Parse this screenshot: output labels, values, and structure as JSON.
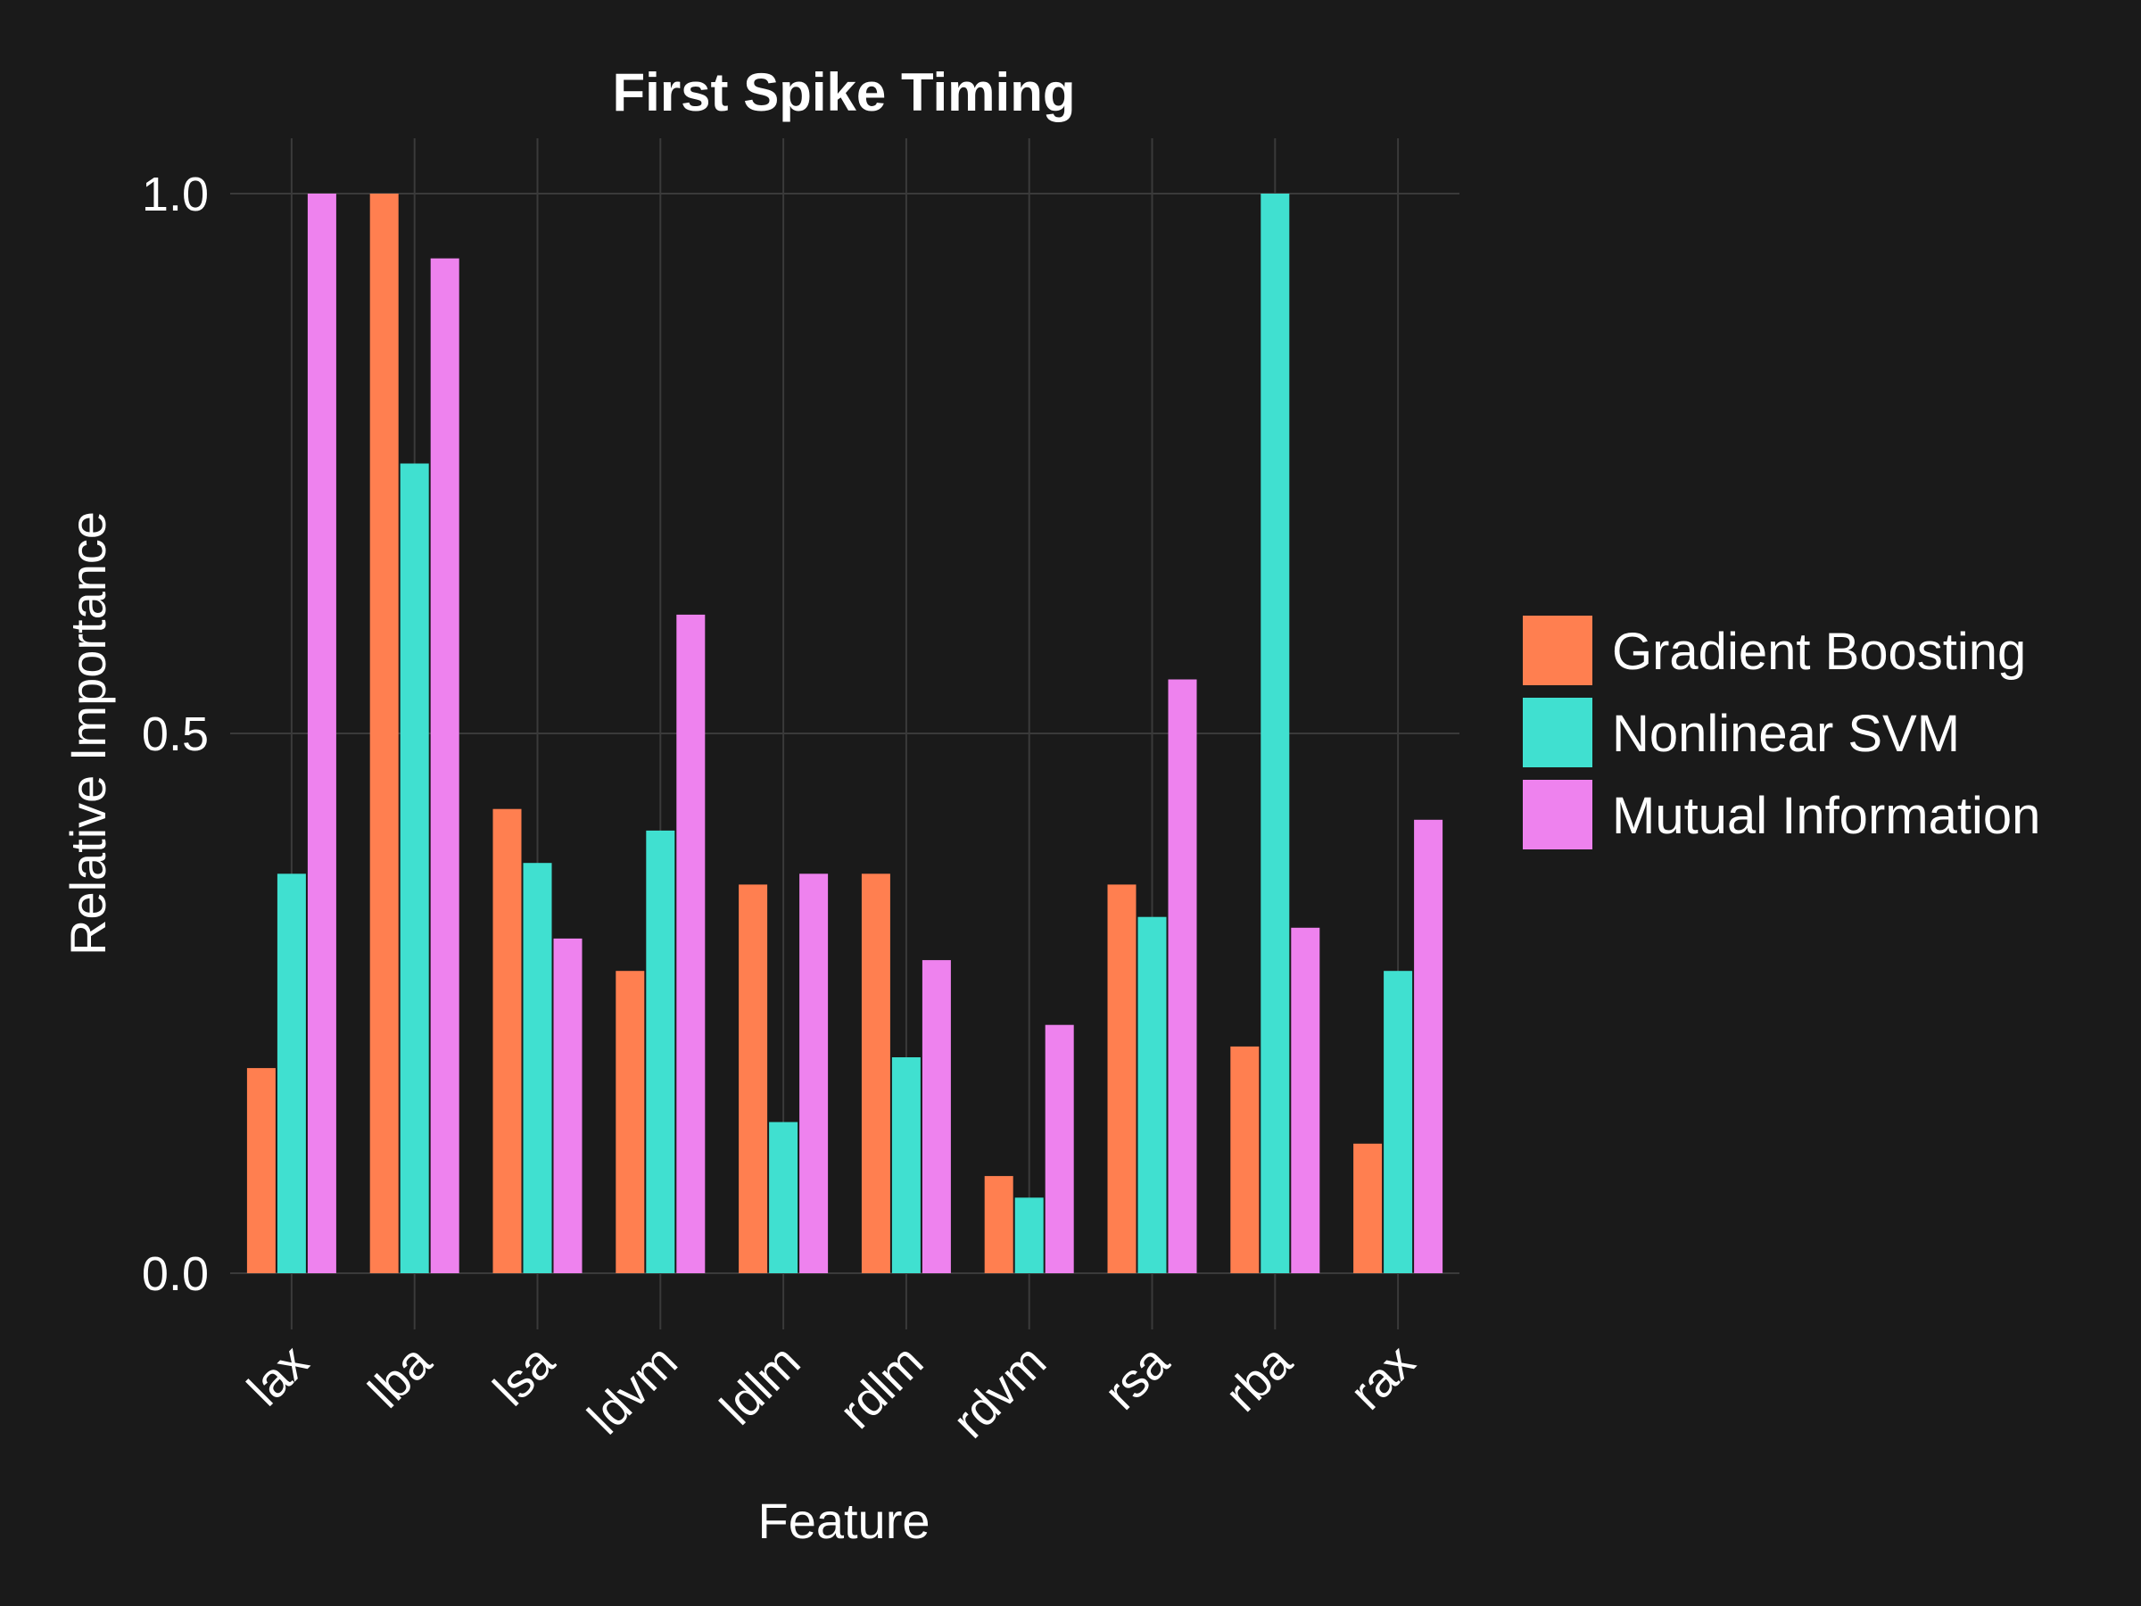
{
  "chart_data": {
    "type": "bar",
    "title": "First Spike Timing",
    "xlabel": "Feature",
    "ylabel": "Relative Importance",
    "categories": [
      "lax",
      "lba",
      "lsa",
      "ldvm",
      "ldlm",
      "rdlm",
      "rdvm",
      "rsa",
      "rba",
      "rax"
    ],
    "series": [
      {
        "name": "Gradient Boosting",
        "color": "#ff7f50",
        "values": [
          0.19,
          1.0,
          0.43,
          0.28,
          0.36,
          0.37,
          0.09,
          0.36,
          0.21,
          0.12
        ]
      },
      {
        "name": "Nonlinear SVM",
        "color": "#40e0d0",
        "values": [
          0.37,
          0.75,
          0.38,
          0.41,
          0.14,
          0.2,
          0.07,
          0.33,
          1.0,
          0.28
        ]
      },
      {
        "name": "Mutual Information",
        "color": "#ee82ee",
        "values": [
          1.0,
          0.94,
          0.31,
          0.61,
          0.37,
          0.29,
          0.23,
          0.55,
          0.32,
          0.42
        ]
      }
    ],
    "ylim": [
      -0.05,
      1.05
    ],
    "yticks": [
      0.0,
      0.5,
      1.0
    ],
    "ytick_labels": [
      "0.0",
      "0.5",
      "1.0"
    ],
    "grid": true,
    "legend_position": "right"
  }
}
